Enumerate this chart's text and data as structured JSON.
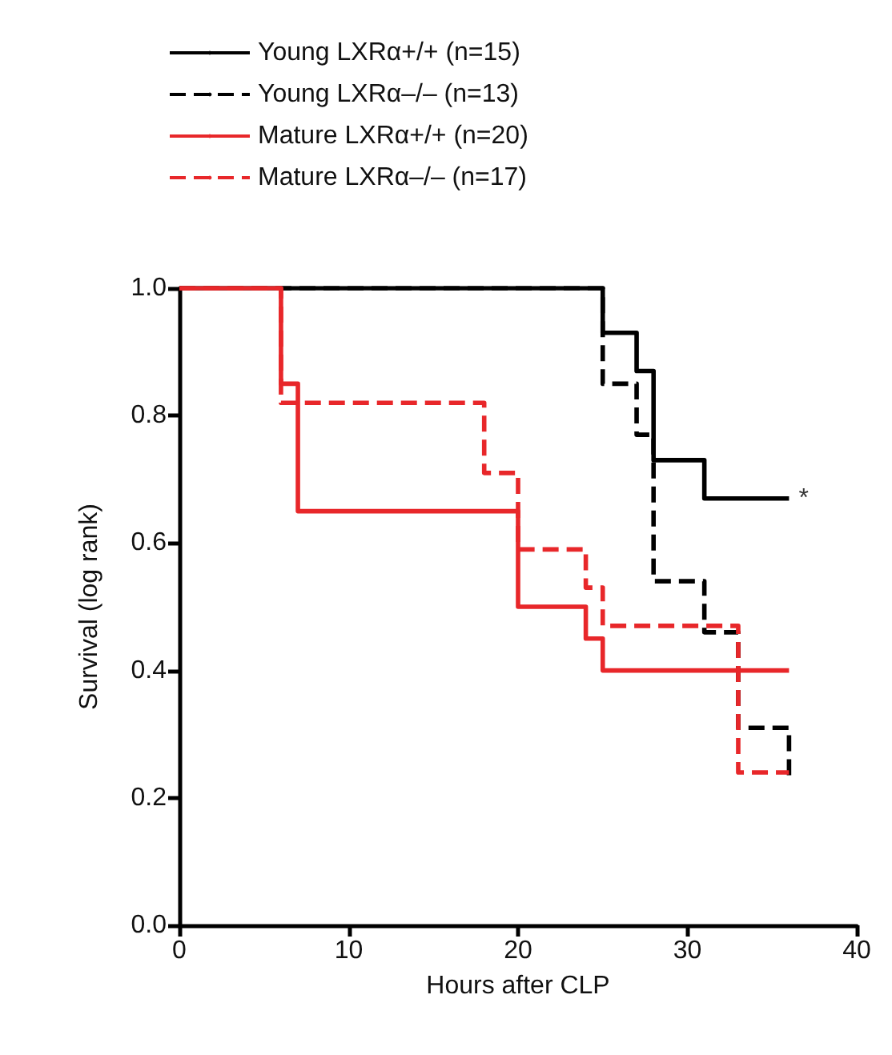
{
  "chart_data": {
    "type": "step",
    "xlabel": "Hours after CLP",
    "ylabel": "Survival (log rank)",
    "xlim": [
      0,
      40
    ],
    "xticks": [
      0,
      10,
      20,
      30,
      40
    ],
    "ylim": [
      0,
      1
    ],
    "yticks": [
      {
        "value": 0,
        "label": "0.0"
      },
      {
        "value": 0.2,
        "label": "0.2"
      },
      {
        "value": 0.4,
        "label": "0.4"
      },
      {
        "value": 0.6,
        "label": "0.6"
      },
      {
        "value": 0.8,
        "label": "0.8"
      },
      {
        "value": 1,
        "label": "1.0"
      }
    ],
    "grid": false,
    "legend": "top left",
    "marker": "none",
    "annotations": [
      {
        "text": "*",
        "x": 36,
        "y": 0.67
      }
    ],
    "series": [
      {
        "name": "Young LXRα+/+ (n=15)",
        "color": "#000000",
        "line_style": "solid",
        "x": [
          0,
          25,
          27,
          28,
          31,
          36
        ],
        "values": [
          1,
          0.93,
          0.87,
          0.73,
          0.67,
          0.67
        ]
      },
      {
        "name": "Young LXRα–/– (n=13)",
        "color": "#000000",
        "line_style": "dashed",
        "x": [
          0,
          25,
          27,
          28,
          31,
          33,
          36
        ],
        "values": [
          1,
          0.85,
          0.77,
          0.54,
          0.46,
          0.31,
          0.23
        ]
      },
      {
        "name": "Mature LXRα+/+ (n=20)",
        "color": "#e8272a",
        "line_style": "solid",
        "x": [
          0,
          6,
          7,
          20,
          24,
          25,
          36
        ],
        "values": [
          1,
          0.85,
          0.65,
          0.5,
          0.45,
          0.4,
          0.4
        ]
      },
      {
        "name": "Mature LXRα–/– (n=17)",
        "color": "#e8272a",
        "line_style": "dashed",
        "x": [
          0,
          6,
          18,
          20,
          24,
          25,
          33,
          36
        ],
        "values": [
          1,
          0.82,
          0.71,
          0.59,
          0.53,
          0.47,
          0.24,
          0.24
        ]
      }
    ]
  }
}
